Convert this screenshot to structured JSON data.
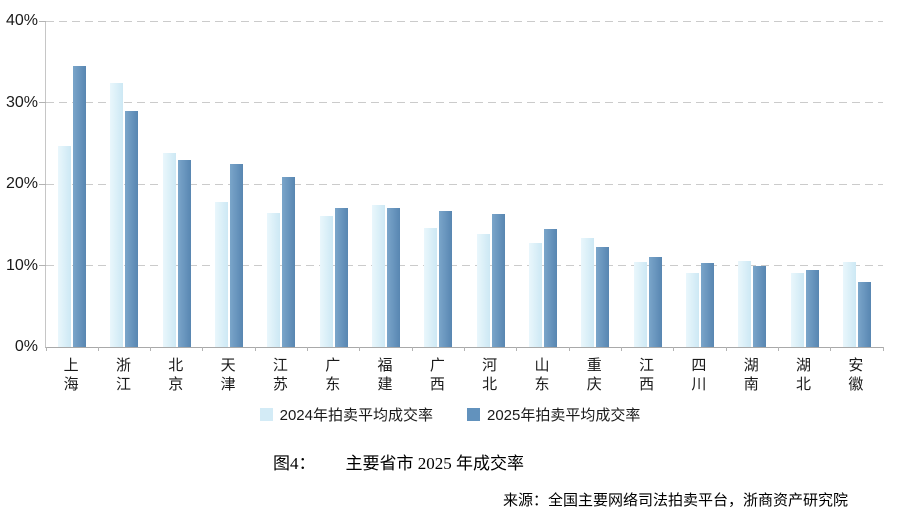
{
  "chart_data": {
    "type": "bar",
    "title": "主要省市 2025 年成交率",
    "xlabel": "",
    "ylabel": "",
    "ylim": [
      0,
      40
    ],
    "ytick_step": 10,
    "ytick_labels": [
      "0%",
      "10%",
      "20%",
      "30%",
      "40%"
    ],
    "grid": "horizontal-dashed",
    "legend_position": "bottom-center",
    "categories": [
      "上海",
      "浙江",
      "北京",
      "天津",
      "江苏",
      "广东",
      "福建",
      "广西",
      "河北",
      "山东",
      "重庆",
      "江西",
      "四川",
      "湖南",
      "湖北",
      "安徽"
    ],
    "series": [
      {
        "name": "2024年拍卖平均成交率",
        "color": "#d3ebf6",
        "gradient": [
          "#e9f7fc",
          "#cde8f4"
        ],
        "values": [
          24.7,
          32.4,
          23.8,
          17.8,
          16.4,
          16.1,
          17.4,
          14.6,
          13.9,
          12.8,
          13.4,
          10.4,
          9.1,
          10.5,
          9.1,
          10.4
        ]
      },
      {
        "name": "2025年拍卖平均成交率",
        "color": "#6292bd",
        "gradient": [
          "#7aa5ca",
          "#5886b1"
        ],
        "values": [
          34.5,
          29.0,
          23.0,
          22.5,
          20.8,
          17.1,
          17.0,
          16.7,
          16.3,
          14.5,
          12.3,
          11.0,
          10.3,
          10.0,
          9.4,
          8.0
        ]
      }
    ]
  },
  "caption": {
    "label": "图4：",
    "text": "主要省市 2025 年成交率"
  },
  "source": "来源：全国主要网络司法拍卖平台，浙商资产研究院"
}
